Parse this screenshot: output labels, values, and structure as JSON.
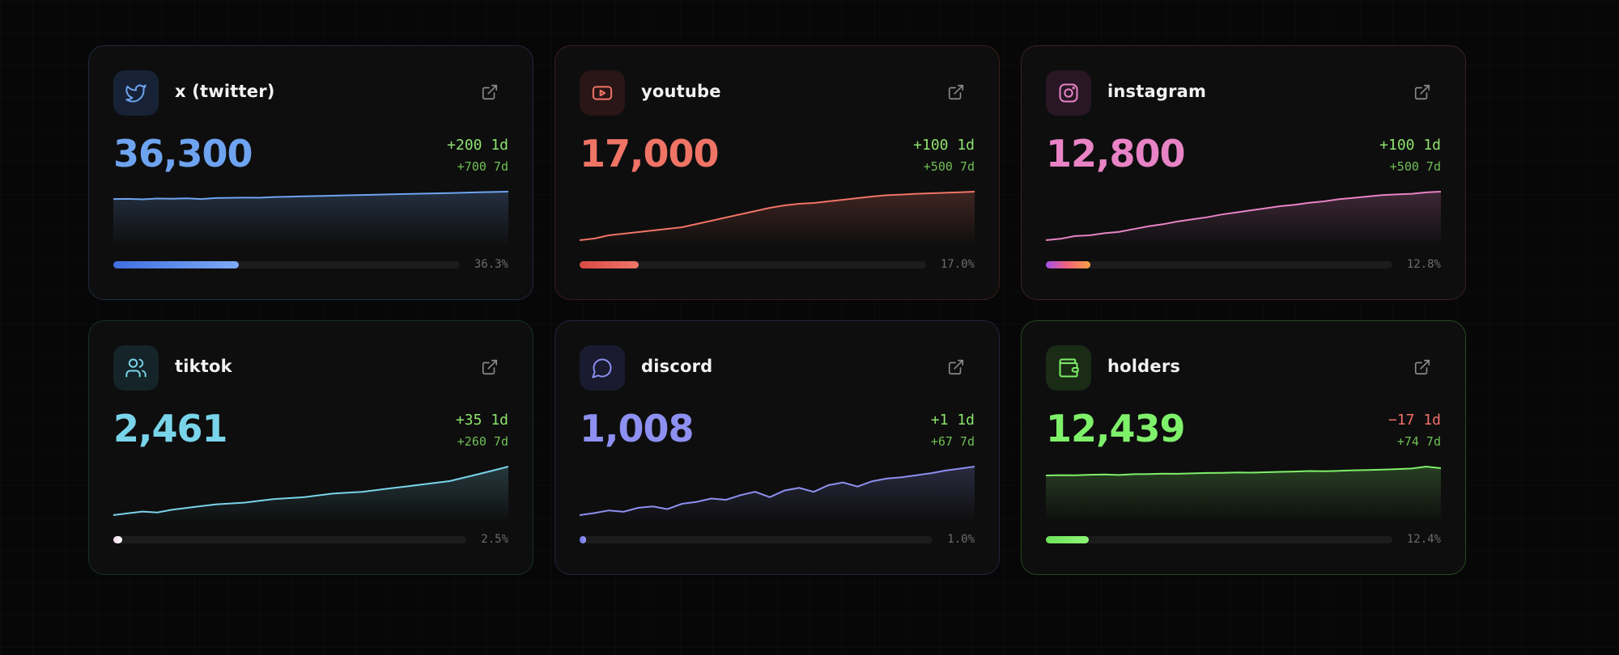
{
  "cards": [
    {
      "key": "twitter",
      "name": "x (twitter)",
      "icon": "twitter-bird-icon",
      "total": "36,300",
      "change_1d": "+200 1d",
      "change_7d": "+700 7d",
      "progress_label": "36.3%",
      "progress": 0.363,
      "accent": "#6ea3f0",
      "border": "#1f2a3d",
      "icon_bg": "#172236",
      "bar": "linear-gradient(90deg,#3f6fe0,#7eaaf6)",
      "negative_1d": false,
      "trend": [
        36080,
        36085,
        36070,
        36095,
        36090,
        36100,
        36080,
        36110,
        36115,
        36120,
        36118,
        36140,
        36150,
        36160,
        36170,
        36180,
        36190,
        36200,
        36210,
        36220,
        36230,
        36240,
        36250,
        36260,
        36270,
        36280,
        36290,
        36300
      ]
    },
    {
      "key": "youtube",
      "name": "youtube",
      "icon": "youtube-play-icon",
      "total": "17,000",
      "change_1d": "+100 1d",
      "change_7d": "+500 7d",
      "progress_label": "17.0%",
      "progress": 0.17,
      "accent": "#ef7466",
      "border": "#3b1d1a",
      "icon_bg": "#2a1616",
      "bar": "linear-gradient(90deg,#d84a44,#f2766a)",
      "negative_1d": false,
      "trend": [
        14000,
        14100,
        14300,
        14400,
        14500,
        14600,
        14700,
        14800,
        15000,
        15200,
        15400,
        15600,
        15800,
        16000,
        16150,
        16250,
        16300,
        16400,
        16500,
        16600,
        16700,
        16780,
        16820,
        16870,
        16900,
        16930,
        16960,
        17000
      ]
    },
    {
      "key": "instagram",
      "name": "instagram",
      "icon": "instagram-camera-icon",
      "total": "12,800",
      "change_1d": "+100 1d",
      "change_7d": "+500 7d",
      "progress_label": "12.8%",
      "progress": 0.128,
      "accent": "#e883c6",
      "border": "#3a1f30",
      "icon_bg": "#291725",
      "bar": "linear-gradient(90deg,#a550ea,#f2647a,#f9a443)",
      "negative_1d": false,
      "trend": [
        12100,
        12120,
        12160,
        12170,
        12200,
        12220,
        12260,
        12300,
        12330,
        12370,
        12400,
        12430,
        12470,
        12500,
        12530,
        12560,
        12590,
        12610,
        12640,
        12660,
        12690,
        12710,
        12730,
        12750,
        12760,
        12770,
        12790,
        12800
      ]
    },
    {
      "key": "tiktok",
      "name": "tiktok",
      "icon": "users-icon",
      "total": "2,461",
      "change_1d": "+35 1d",
      "change_7d": "+260 7d",
      "progress_label": "2.5%",
      "progress": 0.025,
      "accent": "#79d4ea",
      "border": "#18302f",
      "icon_bg": "#142428",
      "bar": "linear-gradient(90deg,#f4d7ec,#ffffff)",
      "negative_1d": false,
      "trend": [
        2190,
        2200,
        2210,
        2205,
        2220,
        2230,
        2240,
        2250,
        2255,
        2260,
        2270,
        2280,
        2285,
        2290,
        2300,
        2310,
        2315,
        2320,
        2330,
        2340,
        2350,
        2360,
        2370,
        2380,
        2400,
        2420,
        2440,
        2461
      ]
    },
    {
      "key": "discord",
      "name": "discord",
      "icon": "chat-bubble-icon",
      "total": "1,008",
      "change_1d": "+1 1d",
      "change_7d": "+67 7d",
      "progress_label": "1.0%",
      "progress": 0.01,
      "accent": "#8d90f0",
      "border": "#22243b",
      "icon_bg": "#1a1b30",
      "bar": "linear-gradient(90deg,#6f73e8,#9a9cf7)",
      "negative_1d": false,
      "trend": [
        935,
        938,
        942,
        940,
        946,
        948,
        944,
        952,
        955,
        960,
        958,
        965,
        970,
        962,
        972,
        976,
        970,
        980,
        984,
        978,
        986,
        990,
        992,
        995,
        998,
        1002,
        1005,
        1008
      ]
    },
    {
      "key": "holders",
      "name": "holders",
      "icon": "wallet-icon",
      "total": "12,439",
      "change_1d": "−17 1d",
      "change_7d": "+74 7d",
      "progress_label": "12.4%",
      "progress": 0.124,
      "accent": "#7ff06a",
      "border": "#234a1c",
      "icon_bg": "#1a2c15",
      "bar": "linear-gradient(90deg,#6ee35a,#8ef576)",
      "negative_1d": true,
      "trend": [
        12365,
        12368,
        12366,
        12372,
        12375,
        12370,
        12378,
        12380,
        12384,
        12382,
        12386,
        12390,
        12392,
        12395,
        12394,
        12398,
        12402,
        12405,
        12410,
        12408,
        12412,
        12418,
        12420,
        12425,
        12430,
        12436,
        12456,
        12439
      ]
    }
  ]
}
